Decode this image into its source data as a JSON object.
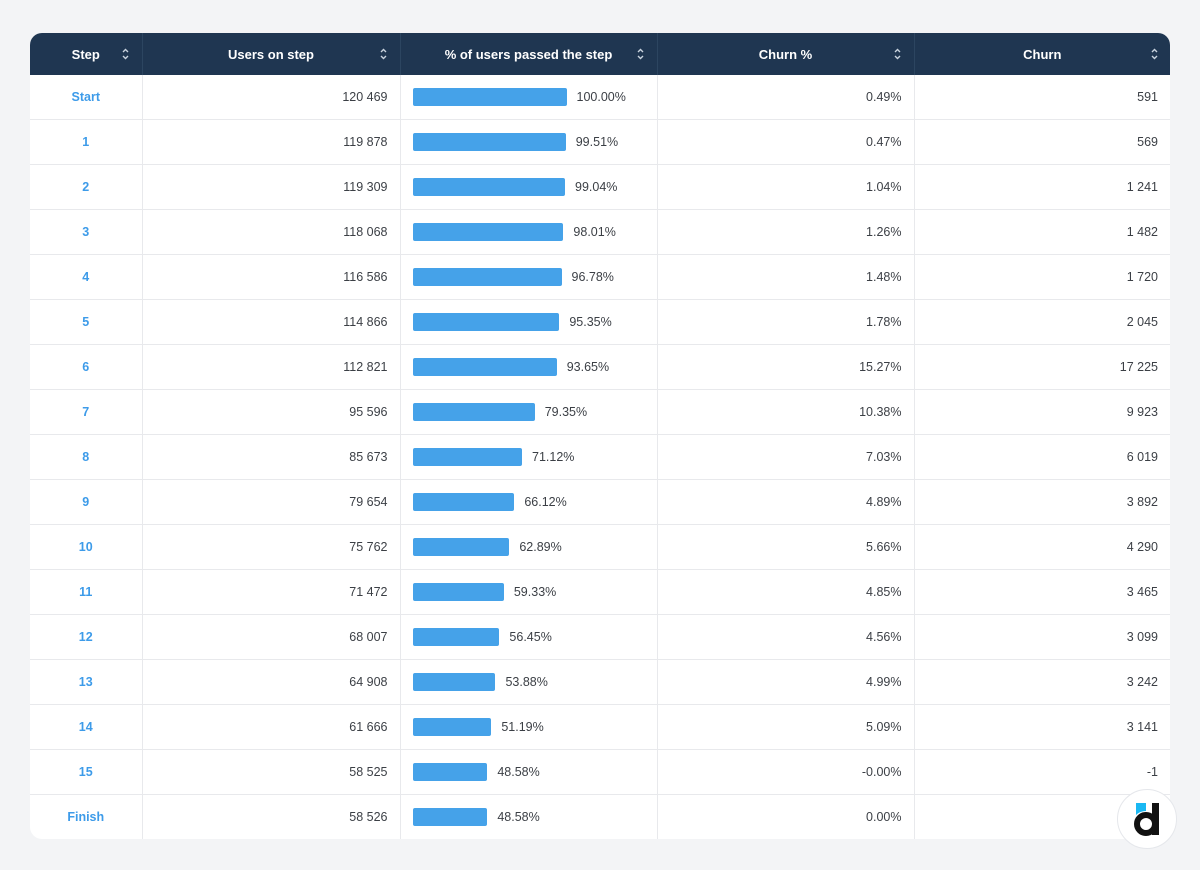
{
  "table": {
    "columns": [
      {
        "key": "step",
        "label": "Step"
      },
      {
        "key": "users",
        "label": "Users on step"
      },
      {
        "key": "pct_passed",
        "label": "% of users passed the step"
      },
      {
        "key": "churn_pct",
        "label": "Churn %"
      },
      {
        "key": "churn",
        "label": "Churn"
      }
    ],
    "rows": [
      {
        "step": "Start",
        "users": "120 469",
        "pct_passed": "100.00%",
        "pct_value": 100.0,
        "churn_pct": "0.49%",
        "churn": "591"
      },
      {
        "step": "1",
        "users": "119 878",
        "pct_passed": "99.51%",
        "pct_value": 99.51,
        "churn_pct": "0.47%",
        "churn": "569"
      },
      {
        "step": "2",
        "users": "119 309",
        "pct_passed": "99.04%",
        "pct_value": 99.04,
        "churn_pct": "1.04%",
        "churn": "1 241"
      },
      {
        "step": "3",
        "users": "118 068",
        "pct_passed": "98.01%",
        "pct_value": 98.01,
        "churn_pct": "1.26%",
        "churn": "1 482"
      },
      {
        "step": "4",
        "users": "116 586",
        "pct_passed": "96.78%",
        "pct_value": 96.78,
        "churn_pct": "1.48%",
        "churn": "1 720"
      },
      {
        "step": "5",
        "users": "114 866",
        "pct_passed": "95.35%",
        "pct_value": 95.35,
        "churn_pct": "1.78%",
        "churn": "2 045"
      },
      {
        "step": "6",
        "users": "112 821",
        "pct_passed": "93.65%",
        "pct_value": 93.65,
        "churn_pct": "15.27%",
        "churn": "17 225"
      },
      {
        "step": "7",
        "users": "95 596",
        "pct_passed": "79.35%",
        "pct_value": 79.35,
        "churn_pct": "10.38%",
        "churn": "9 923"
      },
      {
        "step": "8",
        "users": "85 673",
        "pct_passed": "71.12%",
        "pct_value": 71.12,
        "churn_pct": "7.03%",
        "churn": "6 019"
      },
      {
        "step": "9",
        "users": "79 654",
        "pct_passed": "66.12%",
        "pct_value": 66.12,
        "churn_pct": "4.89%",
        "churn": "3 892"
      },
      {
        "step": "10",
        "users": "75 762",
        "pct_passed": "62.89%",
        "pct_value": 62.89,
        "churn_pct": "5.66%",
        "churn": "4 290"
      },
      {
        "step": "11",
        "users": "71 472",
        "pct_passed": "59.33%",
        "pct_value": 59.33,
        "churn_pct": "4.85%",
        "churn": "3 465"
      },
      {
        "step": "12",
        "users": "68 007",
        "pct_passed": "56.45%",
        "pct_value": 56.45,
        "churn_pct": "4.56%",
        "churn": "3 099"
      },
      {
        "step": "13",
        "users": "64 908",
        "pct_passed": "53.88%",
        "pct_value": 53.88,
        "churn_pct": "4.99%",
        "churn": "3 242"
      },
      {
        "step": "14",
        "users": "61 666",
        "pct_passed": "51.19%",
        "pct_value": 51.19,
        "churn_pct": "5.09%",
        "churn": "3 141"
      },
      {
        "step": "15",
        "users": "58 525",
        "pct_passed": "48.58%",
        "pct_value": 48.58,
        "churn_pct": "-0.00%",
        "churn": "-1"
      },
      {
        "step": "Finish",
        "users": "58 526",
        "pct_passed": "48.58%",
        "pct_value": 48.58,
        "churn_pct": "0.00%",
        "churn": ""
      }
    ]
  },
  "icons": {
    "sort": "sort-updown-icon",
    "logo": "devtodev-logo-icon"
  },
  "colors": {
    "header_bg": "#1f3651",
    "step_link": "#3d9be9",
    "bar": "#45a2e9",
    "page_bg": "#f3f4f6",
    "logo_accent": "#1ab8f3"
  }
}
